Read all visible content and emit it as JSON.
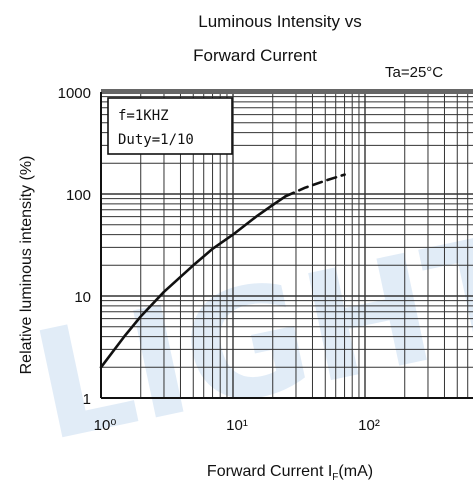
{
  "chart_data": {
    "type": "line",
    "title": [
      "Luminous Intensity vs",
      "Forward Current"
    ],
    "condition": "Ta=25°C",
    "xlabel": "Forward Current",
    "xlabel_symbol": "I",
    "xlabel_subscript": "F",
    "xlabel_unit": "(mA)",
    "ylabel": "Relative luminous intensity",
    "ylabel_unit": "(%)",
    "x_scale": "log",
    "y_scale": "log",
    "xlim": [
      1,
      1000
    ],
    "ylim": [
      1,
      1000
    ],
    "x_tick_labels": [
      "10⁰",
      "10¹",
      "10²"
    ],
    "x_tick_values": [
      1,
      10,
      100
    ],
    "y_tick_labels": [
      "1",
      "10",
      "100",
      "1000"
    ],
    "y_tick_values": [
      1,
      10,
      100,
      1000
    ],
    "grid": true,
    "legend": "top-left",
    "annotation_lines": [
      "f=1KHZ",
      "Duty=1/10"
    ],
    "series": [
      {
        "style": "solid",
        "x": [
          1,
          1.5,
          2,
          3,
          5,
          7,
          10,
          15,
          20,
          25
        ],
        "y": [
          2,
          4,
          6.3,
          11,
          20,
          29,
          40,
          60,
          78,
          95
        ]
      },
      {
        "style": "dashed",
        "x": [
          25,
          35,
          50,
          70
        ],
        "y": [
          95,
          115,
          135,
          155
        ]
      }
    ],
    "watermark_text": "LIGHT",
    "colors": {
      "line": "#111111",
      "grid": "#333333",
      "watermark": "#c9ddf2"
    }
  }
}
